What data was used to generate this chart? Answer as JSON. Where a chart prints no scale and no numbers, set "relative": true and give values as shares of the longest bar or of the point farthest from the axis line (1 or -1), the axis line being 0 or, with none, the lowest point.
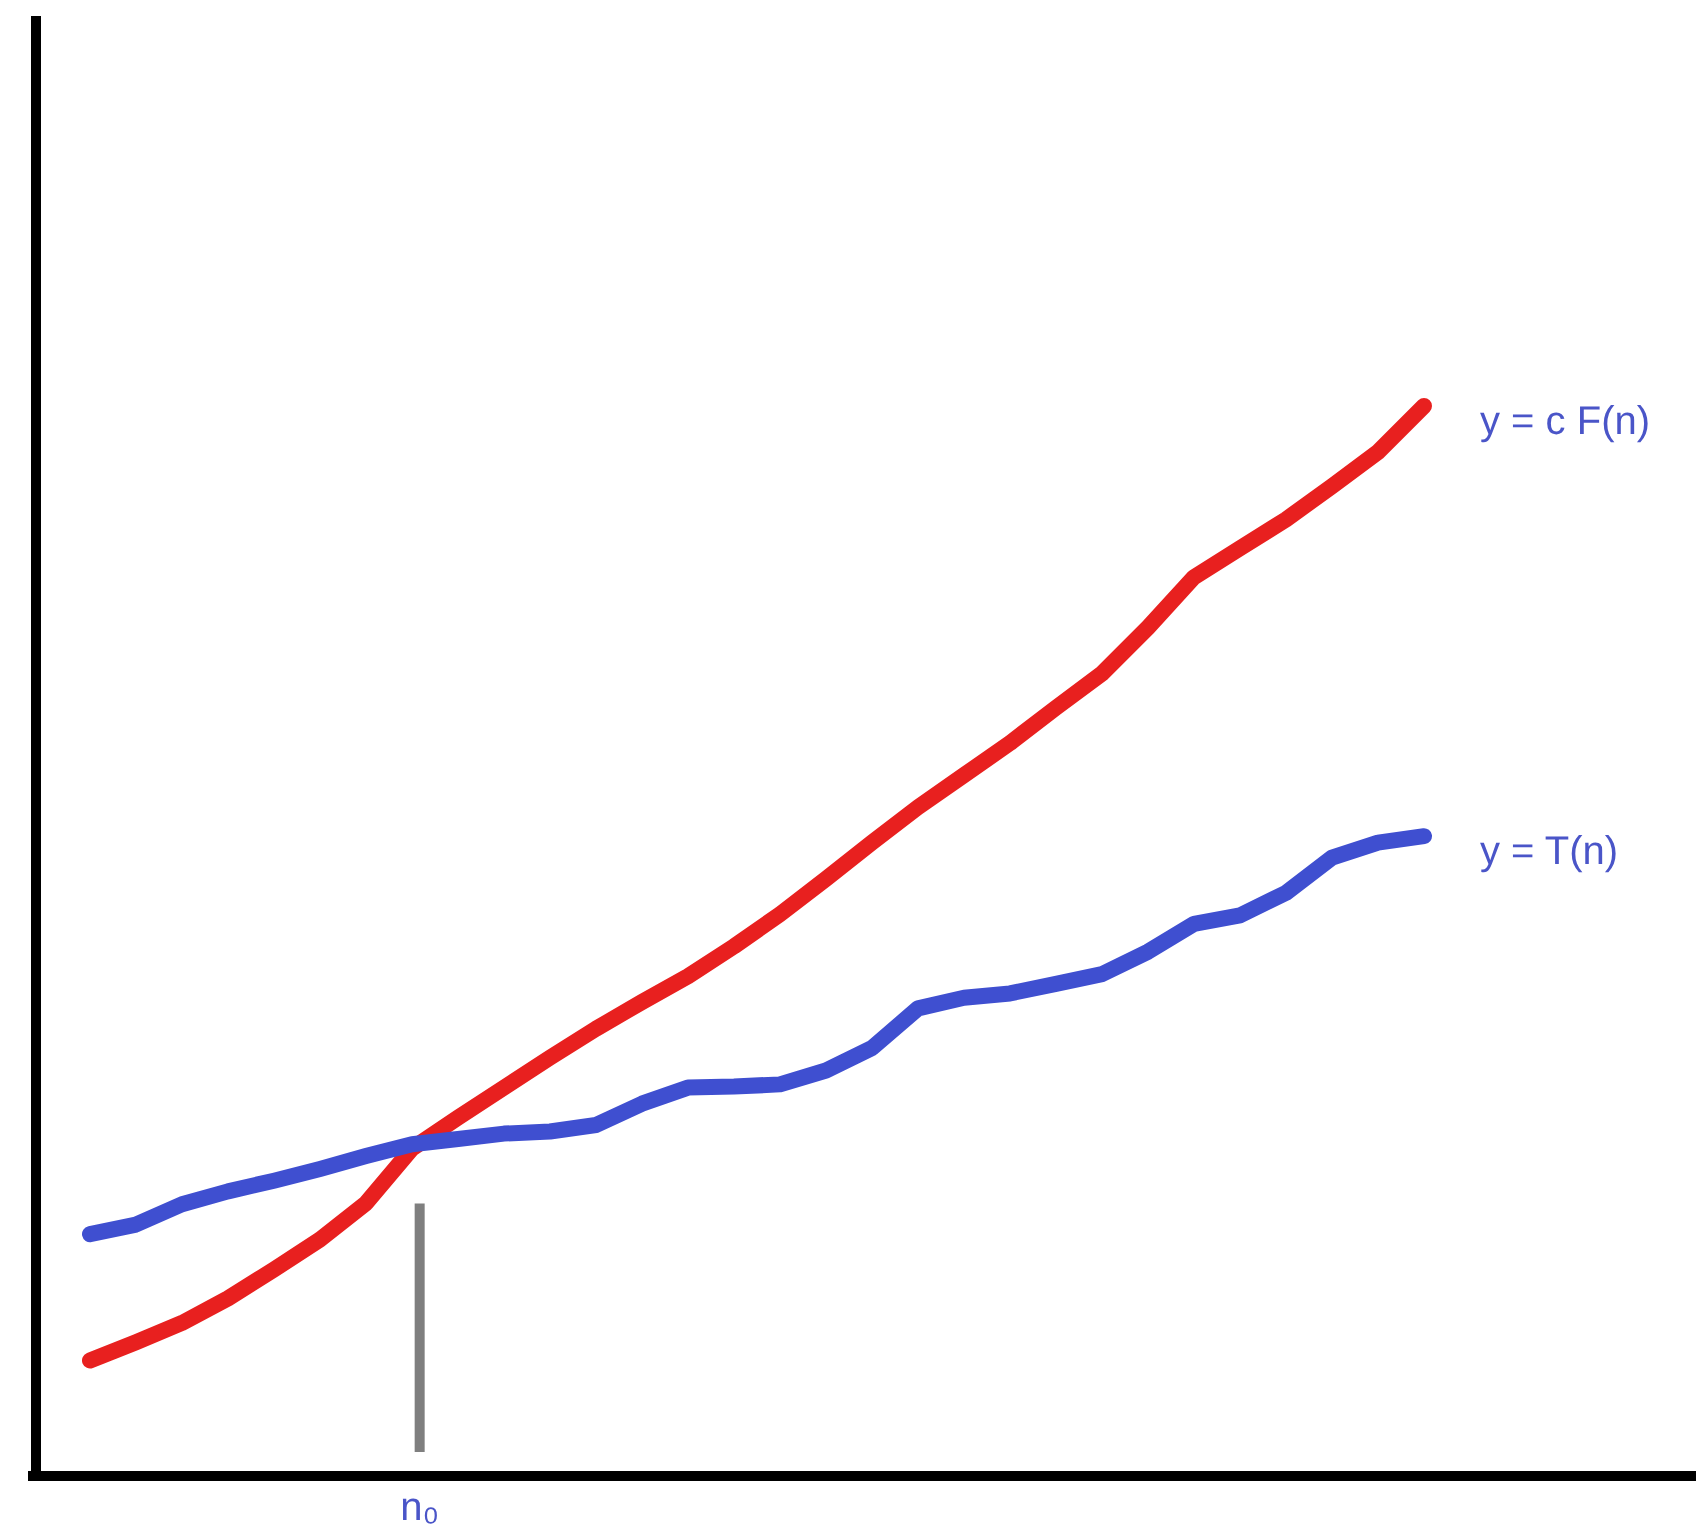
{
  "chart_data": {
    "type": "line",
    "relative": true,
    "categories": [
      null,
      null,
      null,
      null,
      null,
      null,
      null,
      null,
      null,
      null,
      null,
      null,
      null,
      null,
      null,
      null,
      null,
      null,
      null,
      null,
      null,
      null,
      null,
      null,
      null,
      null,
      null,
      null,
      null,
      null
    ],
    "series": [
      {
        "name": "y = c F(n)",
        "color": "#e8201f",
        "values": [
          0.108,
          0.125,
          0.143,
          0.166,
          0.193,
          0.221,
          0.255,
          0.306,
          0.335,
          0.363,
          0.391,
          0.418,
          0.443,
          0.467,
          0.495,
          0.525,
          0.558,
          0.592,
          0.625,
          0.655,
          0.685,
          0.718,
          0.75,
          0.793,
          0.84,
          0.867,
          0.894,
          0.925,
          0.957,
          1
        ]
      },
      {
        "name": "y = T(n)",
        "color": "#3f4fd0",
        "values": [
          0.226,
          0.235,
          0.254,
          0.266,
          0.276,
          0.287,
          0.299,
          0.31,
          0.315,
          0.32,
          0.322,
          0.328,
          0.348,
          0.363,
          0.364,
          0.366,
          0.379,
          0.4,
          0.437,
          0.447,
          0.451,
          0.46,
          0.469,
          0.49,
          0.516,
          0.524,
          0.545,
          0.578,
          0.592,
          0.598
        ]
      }
    ],
    "annotations": [
      "n₀"
    ]
  }
}
